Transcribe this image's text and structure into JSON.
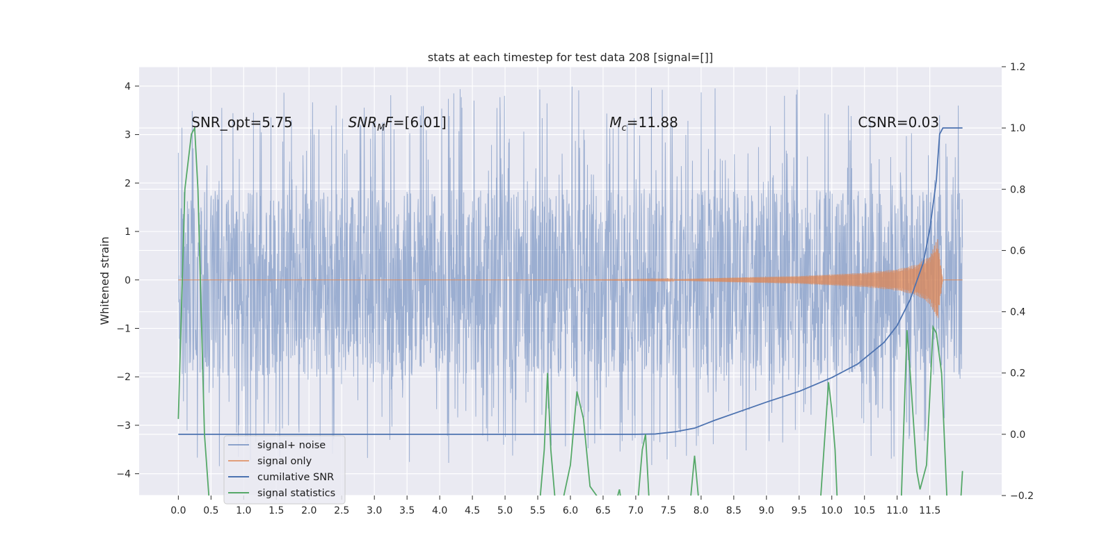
{
  "chart_data": {
    "type": "line",
    "title": "stats at each timestep for test data 208 [signal=[]]",
    "ylabel": "Whitened strain",
    "xlabel": "",
    "xlim": [
      -0.6,
      12.6
    ],
    "ylim": [
      -4.45,
      4.4
    ],
    "y2lim": [
      -0.2,
      1.2
    ],
    "grid": true,
    "legend_placement": "lower-left",
    "x_ticks": [
      0.0,
      0.5,
      1.0,
      1.5,
      2.0,
      2.5,
      3.0,
      3.5,
      4.0,
      4.5,
      5.0,
      5.5,
      6.0,
      6.5,
      7.0,
      7.5,
      8.0,
      8.5,
      9.0,
      9.5,
      10.0,
      10.5,
      11.0,
      11.5
    ],
    "x_tick_labels": [
      "0.0",
      "0.5",
      "1.0",
      "1.5",
      "2.0",
      "2.5",
      "3.0",
      "3.5",
      "4.0",
      "4.5",
      "5.0",
      "5.5",
      "6.0",
      "6.5",
      "7.0",
      "7.5",
      "8.0",
      "8.5",
      "9.0",
      "9.5",
      "10.0",
      "10.5",
      "11.0",
      "11.5"
    ],
    "y_ticks": [
      4,
      3,
      2,
      1,
      0,
      -1,
      -2,
      -3,
      -4
    ],
    "y_tick_labels": [
      "4",
      "3",
      "2",
      "1",
      "0",
      "−1",
      "−2",
      "−3",
      "−4"
    ],
    "y2_ticks": [
      1.2,
      1.0,
      0.8,
      0.6,
      0.4,
      0.2,
      0.0,
      -0.2
    ],
    "y2_tick_labels": [
      "1.2",
      "1.0",
      "0.8",
      "0.6",
      "0.4",
      "0.2",
      "0.0",
      "−0.2"
    ],
    "annotations": [
      {
        "text": "SNR_opt=5.75",
        "x": 0.2,
        "y": 3.15
      },
      {
        "text": "SNR_MF=[6.01]",
        "main": "SNR",
        "sub": "M",
        "rest": "F=[6.01]",
        "x": 2.6,
        "y": 3.15
      },
      {
        "text": "M_c=11.88",
        "main": "M",
        "sub": "c",
        "rest": "=11.88",
        "x": 6.6,
        "y": 3.15
      },
      {
        "text": "CSNR=0.03",
        "x": 10.4,
        "y": 3.15
      }
    ],
    "series": [
      {
        "name": "signal+ noise",
        "axis": "left",
        "color": "#4c72b0",
        "opacity": 0.5,
        "x_range": [
          0.0,
          12.0
        ],
        "band_low": -2.0,
        "band_high": 1.85,
        "peak_max": 4.0,
        "peak_min": -3.85
      },
      {
        "name": "signal only",
        "axis": "left",
        "color": "#dd8452",
        "envelope_x": [
          0.0,
          6.0,
          7.5,
          8.5,
          9.5,
          10.5,
          11.0,
          11.3,
          11.5,
          11.62,
          11.65,
          11.7,
          12.0
        ],
        "envelope_y": [
          0.0,
          0.0,
          0.01,
          0.05,
          0.08,
          0.15,
          0.22,
          0.32,
          0.5,
          0.85,
          0.5,
          0.0,
          0.0
        ]
      },
      {
        "name": "cumilative SNR",
        "axis": "right",
        "color": "#4c72b0",
        "x": [
          0.0,
          7.0,
          7.3,
          7.6,
          7.9,
          8.2,
          8.6,
          9.0,
          9.5,
          10.0,
          10.4,
          10.8,
          11.0,
          11.2,
          11.4,
          11.5,
          11.6,
          11.65,
          11.7,
          12.0
        ],
        "y": [
          0.0,
          0.0,
          0.001,
          0.008,
          0.02,
          0.045,
          0.075,
          0.105,
          0.14,
          0.185,
          0.23,
          0.3,
          0.355,
          0.44,
          0.56,
          0.67,
          0.83,
          0.98,
          1.0,
          1.0
        ]
      },
      {
        "name": "signal statistics",
        "axis": "right",
        "color": "#55a868",
        "x": [
          0.0,
          0.1,
          0.2,
          0.25,
          0.3,
          0.4,
          0.5,
          5.5,
          5.6,
          5.65,
          5.7,
          5.8,
          6.0,
          6.1,
          6.2,
          6.3,
          6.4,
          6.5,
          6.6,
          6.75,
          6.8,
          7.0,
          7.1,
          7.15,
          7.2,
          7.3,
          7.8,
          7.9,
          8.0,
          8.1,
          9.8,
          9.95,
          10.0,
          10.05,
          10.1,
          10.2,
          11.05,
          11.15,
          11.2,
          11.3,
          11.35,
          11.45,
          11.55,
          11.6,
          11.68,
          11.78,
          11.85,
          11.95,
          12.0
        ],
        "y": [
          0.05,
          0.8,
          0.98,
          1.0,
          0.8,
          0.0,
          -0.3,
          -0.3,
          -0.05,
          0.2,
          -0.05,
          -0.3,
          -0.1,
          0.14,
          0.05,
          -0.17,
          -0.2,
          -0.3,
          -0.3,
          -0.18,
          -0.25,
          -0.3,
          -0.05,
          0.0,
          -0.2,
          -0.3,
          -0.3,
          -0.07,
          -0.3,
          -0.3,
          -0.3,
          0.17,
          0.08,
          -0.05,
          -0.3,
          -0.3,
          -0.3,
          0.34,
          0.2,
          -0.12,
          -0.18,
          -0.1,
          0.35,
          0.33,
          0.2,
          -0.3,
          -0.3,
          -0.3,
          -0.12
        ]
      }
    ]
  }
}
